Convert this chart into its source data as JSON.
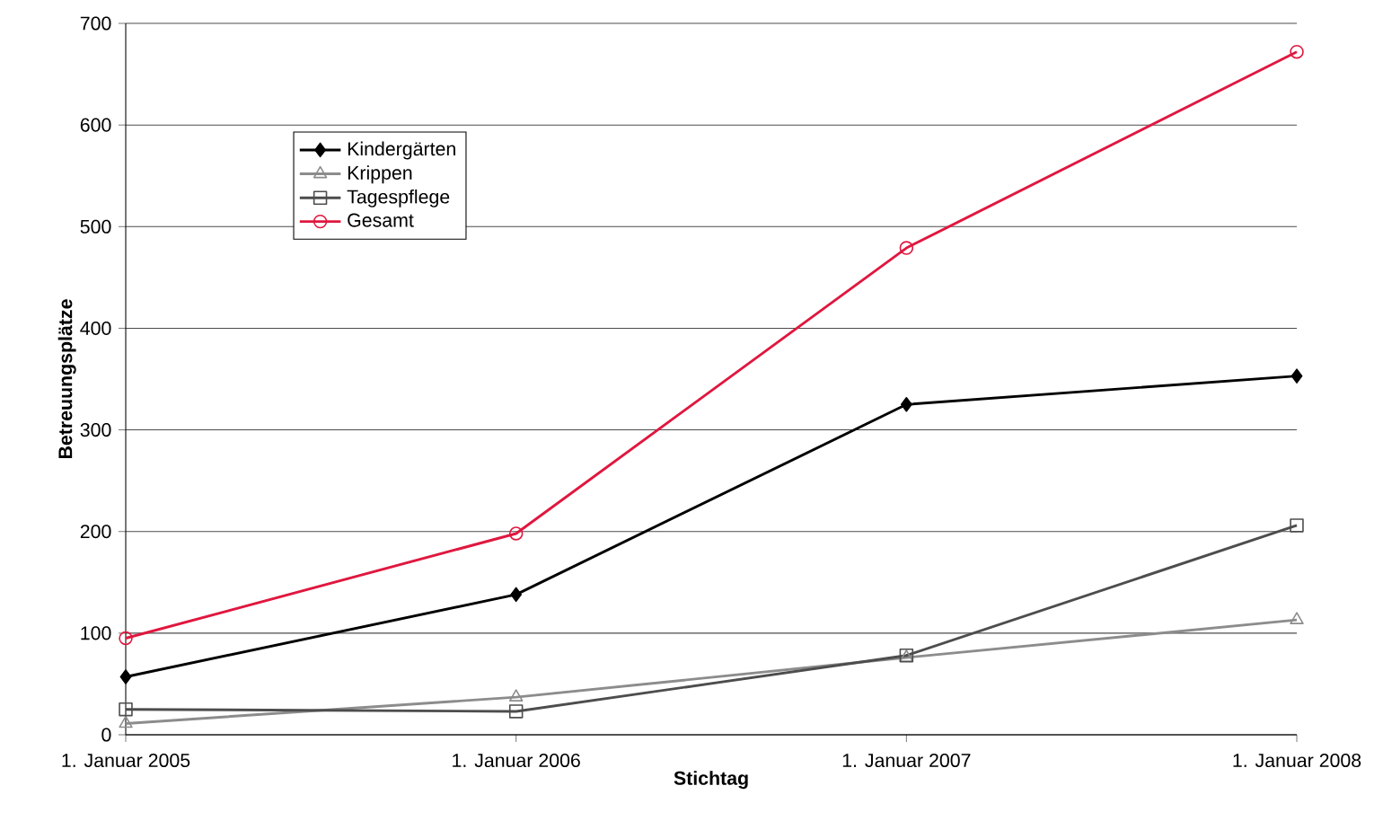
{
  "chart_data": {
    "type": "line",
    "xlabel": "Stichtag",
    "ylabel": "Betreuungsplätze",
    "categories": [
      "1. Januar 2005",
      "1. Januar 2006",
      "1. Januar 2007",
      "1. Januar 2008"
    ],
    "series": [
      {
        "name": "Kindergärten",
        "color": "#000000",
        "marker": "diamond",
        "values": [
          57,
          138,
          325,
          353
        ]
      },
      {
        "name": "Krippen",
        "color": "#8c8c8c",
        "marker": "triangle",
        "values": [
          11,
          37,
          76,
          113
        ]
      },
      {
        "name": "Tagespflege",
        "color": "#4d4d4d",
        "marker": "square",
        "values": [
          25,
          23,
          78,
          206
        ]
      },
      {
        "name": "Gesamt",
        "color": "#e0173f",
        "marker": "circle",
        "values": [
          95,
          198,
          479,
          672
        ]
      }
    ],
    "ylim": [
      0,
      700
    ],
    "yticks": [
      0,
      100,
      200,
      300,
      400,
      500,
      600,
      700
    ],
    "grid": "y",
    "legend": "top left",
    "line_style": "solid"
  }
}
